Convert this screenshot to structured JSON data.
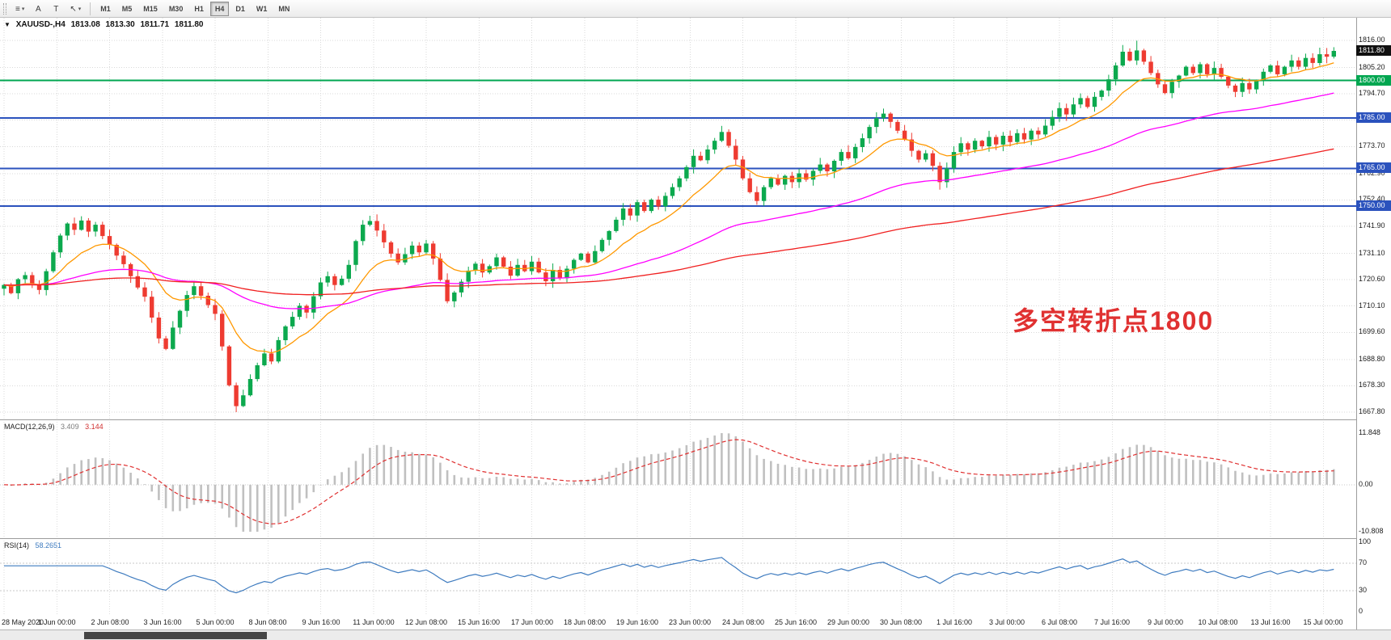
{
  "toolbar": {
    "tools": [
      {
        "name": "chart-menu",
        "glyph": "≡",
        "caret": "▾"
      },
      {
        "name": "font-tool",
        "glyph": "A",
        "caret": ""
      },
      {
        "name": "text-label-tool",
        "glyph": "T",
        "caret": ""
      },
      {
        "name": "cursor-tool",
        "glyph": "↖",
        "caret": "▾"
      }
    ],
    "timeframes": [
      "M1",
      "M5",
      "M15",
      "M30",
      "H1",
      "H4",
      "D1",
      "W1",
      "MN"
    ],
    "active_timeframe": "H4"
  },
  "chart": {
    "symbol_line": {
      "arrow": "▼",
      "symbol": "XAUUSD-,H4",
      "open": "1813.08",
      "high": "1813.30",
      "low": "1811.71",
      "close": "1811.80"
    },
    "annotation": {
      "text": "多空转折点1800",
      "color": "#e03131"
    },
    "price_axis": {
      "labels": [
        {
          "text": "1816.00",
          "price": 1816.0
        },
        {
          "text": "1805.20",
          "price": 1805.2
        },
        {
          "text": "1794.70",
          "price": 1794.7
        },
        {
          "text": "1784.20",
          "price": 1784.2
        },
        {
          "text": "1773.70",
          "price": 1773.7
        },
        {
          "text": "1762.90",
          "price": 1762.9
        },
        {
          "text": "1752.40",
          "price": 1752.4
        },
        {
          "text": "1741.90",
          "price": 1741.9
        },
        {
          "text": "1731.10",
          "price": 1731.1
        },
        {
          "text": "1720.60",
          "price": 1720.6
        },
        {
          "text": "1710.10",
          "price": 1710.1
        },
        {
          "text": "1699.60",
          "price": 1699.6
        },
        {
          "text": "1688.80",
          "price": 1688.8
        },
        {
          "text": "1678.30",
          "price": 1678.3
        },
        {
          "text": "1667.80",
          "price": 1667.8
        }
      ],
      "badges": [
        {
          "name": "current-price-badge",
          "label": "1811.80",
          "price": 1811.8,
          "bg": "#101010"
        },
        {
          "name": "level-1800-badge",
          "label": "1800.00",
          "price": 1800.0,
          "bg": "#00a650"
        },
        {
          "name": "level-1785-badge",
          "label": "1785.00",
          "price": 1785.0,
          "bg": "#2b52bd"
        },
        {
          "name": "level-1765-badge",
          "label": "1765.00",
          "price": 1765.0,
          "bg": "#2b52bd"
        },
        {
          "name": "level-1750-badge",
          "label": "1750.00",
          "price": 1750.0,
          "bg": "#2b52bd"
        }
      ]
    }
  },
  "chart_data": {
    "type": "candlestick",
    "title": "XAUUSD-,H4",
    "symbol": "XAUUSD-",
    "timeframe": "H4",
    "ylim": [
      1667.8,
      1816.0
    ],
    "price_gridlines": [
      1816.0,
      1805.2,
      1794.7,
      1784.2,
      1773.7,
      1762.9,
      1752.4,
      1741.9,
      1731.1,
      1720.6,
      1710.1,
      1699.6,
      1688.8,
      1678.3,
      1667.8
    ],
    "horizontal_levels": [
      {
        "price": 1800.0,
        "color": "#00a650"
      },
      {
        "price": 1785.0,
        "color": "#2b52bd"
      },
      {
        "price": 1765.0,
        "color": "#2b52bd"
      },
      {
        "price": 1750.0,
        "color": "#2b52bd"
      }
    ],
    "candle_colors": {
      "bull": "#0ca94e",
      "bear": "#ee3b31"
    },
    "moving_averages": [
      {
        "name": "ma-fast-orange",
        "period": 12,
        "color": "#ff9800"
      },
      {
        "name": "ma-mid-magenta",
        "period": 55,
        "color": "#ff00ff"
      },
      {
        "name": "ma-slow-red",
        "period": 140,
        "color": "#f02020"
      }
    ],
    "closes": [
      1718.5,
      1715.2,
      1720.8,
      1722.4,
      1718.9,
      1716.5,
      1724.0,
      1731.5,
      1738.2,
      1743.0,
      1740.5,
      1744.2,
      1739.8,
      1742.5,
      1738.0,
      1734.5,
      1730.2,
      1726.8,
      1722.0,
      1717.5,
      1713.8,
      1705.5,
      1697.2,
      1693.0,
      1701.5,
      1708.2,
      1714.5,
      1718.0,
      1714.2,
      1710.5,
      1707.0,
      1694.0,
      1678.5,
      1670.2,
      1674.5,
      1681.0,
      1686.5,
      1691.2,
      1688.0,
      1696.5,
      1702.0,
      1705.8,
      1710.2,
      1707.5,
      1714.0,
      1719.5,
      1722.0,
      1718.5,
      1721.0,
      1726.5,
      1736.0,
      1742.5,
      1744.0,
      1740.2,
      1735.5,
      1731.0,
      1727.5,
      1730.8,
      1734.2,
      1731.5,
      1735.0,
      1729.0,
      1720.5,
      1712.0,
      1715.5,
      1719.8,
      1724.2,
      1727.0,
      1723.5,
      1726.0,
      1729.5,
      1725.8,
      1722.2,
      1726.5,
      1724.0,
      1727.8,
      1723.5,
      1720.0,
      1724.5,
      1721.2,
      1725.0,
      1728.5,
      1731.0,
      1727.5,
      1732.0,
      1736.5,
      1740.0,
      1744.5,
      1749.0,
      1746.2,
      1751.5,
      1748.0,
      1752.5,
      1749.8,
      1754.0,
      1757.5,
      1761.0,
      1765.5,
      1770.0,
      1768.2,
      1772.5,
      1776.0,
      1779.5,
      1774.0,
      1768.5,
      1761.0,
      1755.5,
      1752.0,
      1757.5,
      1761.0,
      1758.5,
      1762.0,
      1759.5,
      1763.0,
      1760.5,
      1764.0,
      1766.5,
      1763.8,
      1768.0,
      1771.5,
      1769.0,
      1773.5,
      1777.0,
      1781.5,
      1785.0,
      1786.8,
      1783.5,
      1780.0,
      1776.5,
      1772.0,
      1768.5,
      1771.0,
      1766.0,
      1759.5,
      1765.0,
      1771.5,
      1775.0,
      1772.5,
      1776.0,
      1773.8,
      1777.5,
      1774.5,
      1778.0,
      1775.5,
      1779.0,
      1776.5,
      1780.0,
      1778.5,
      1782.0,
      1785.5,
      1789.0,
      1786.5,
      1790.5,
      1793.0,
      1789.5,
      1793.5,
      1796.0,
      1800.5,
      1806.0,
      1811.5,
      1808.0,
      1812.0,
      1807.5,
      1803.0,
      1798.5,
      1795.0,
      1799.5,
      1802.0,
      1805.5,
      1803.0,
      1806.5,
      1802.5,
      1805.0,
      1801.5,
      1798.0,
      1795.5,
      1799.0,
      1796.5,
      1800.0,
      1803.5,
      1806.0,
      1802.5,
      1805.5,
      1808.0,
      1805.5,
      1809.0,
      1807.0,
      1810.5,
      1809.5,
      1811.8
    ],
    "wick_overrides": {
      "high": {
        "161": 1815.9,
        "189": 1813.3
      },
      "low": {
        "33": 1667.8,
        "133": 1756.5
      }
    },
    "time_labels": [
      "28 May 2020",
      "1 Jun 00:00",
      "2 Jun 08:00",
      "3 Jun 16:00",
      "5 Jun 00:00",
      "8 Jun 08:00",
      "9 Jun 16:00",
      "11 Jun 00:00",
      "12 Jun 08:00",
      "15 Jun 16:00",
      "17 Jun 00:00",
      "18 Jun 08:00",
      "19 Jun 16:00",
      "23 Jun 00:00",
      "24 Jun 08:00",
      "25 Jun 16:00",
      "29 Jun 00:00",
      "30 Jun 08:00",
      "1 Jul 16:00",
      "3 Jul 00:00",
      "6 Jul 08:00",
      "7 Jul 16:00",
      "9 Jul 00:00",
      "10 Jul 08:00",
      "13 Jul 16:00",
      "15 Jul 00:00"
    ]
  },
  "macd": {
    "label": "MACD(12,26,9)",
    "value_main": "3.409",
    "value_signal": "3.144",
    "fast": 12,
    "slow": 26,
    "signal": 9,
    "axis": {
      "max": 11.848,
      "zero": 0.0,
      "min": -10.808
    },
    "axis_labels": [
      "11.848",
      "0.00",
      "-10.808"
    ],
    "colors": {
      "histogram": "#c0c0c0",
      "signal": "#e03030"
    }
  },
  "rsi": {
    "label": "RSI(14)",
    "value": "58.2651",
    "period": 14,
    "levels": [
      70,
      30
    ],
    "level_values": [
      100,
      70,
      30,
      0
    ],
    "axis_labels": [
      "100",
      "70",
      "30",
      "0"
    ],
    "color": "#3e7bbf"
  }
}
